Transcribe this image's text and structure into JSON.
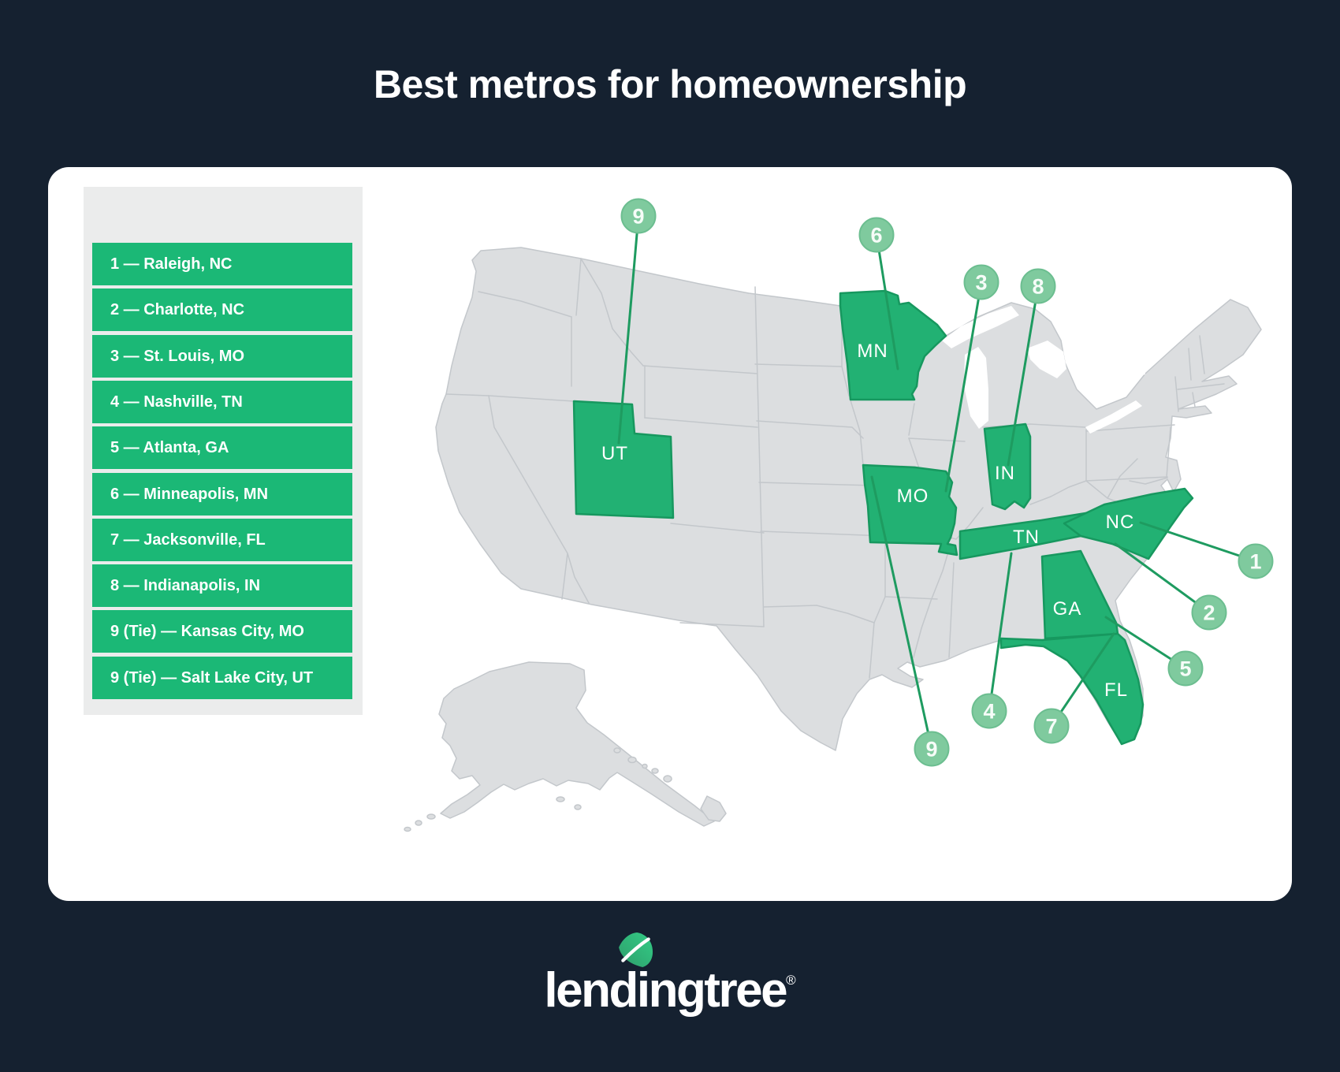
{
  "header": {
    "title": "Best metros for homeownership"
  },
  "legend": {
    "items": [
      "1 — Raleigh, NC",
      "2 — Charlotte, NC",
      "3 — St. Louis, MO",
      "4 — Nashville, TN",
      "5 — Atlanta, GA",
      "6 — Minneapolis, MN",
      "7 — Jacksonville, FL",
      "8 — Indianapolis, IN",
      "9 (Tie) — Kansas City, MO",
      "9 (Tie) — Salt Lake City, UT"
    ]
  },
  "map": {
    "state_labels": [
      "UT",
      "MN",
      "MO",
      "IN",
      "TN",
      "NC",
      "GA",
      "FL"
    ],
    "marker_numbers": [
      "9",
      "6",
      "3",
      "8",
      "1",
      "2",
      "5",
      "4",
      "7",
      "9"
    ]
  },
  "logo": {
    "text": "lendingtree",
    "registered": "®"
  },
  "colors": {
    "background": "#152130",
    "card": "#ffffff",
    "legend_panel": "#ebecec",
    "legend_row_green": "#1bb876",
    "state_green": "#22b173",
    "leader_line_green": "#1e9b60",
    "marker_circle": "#7fca9e",
    "gray_land": "#dcdee0"
  }
}
